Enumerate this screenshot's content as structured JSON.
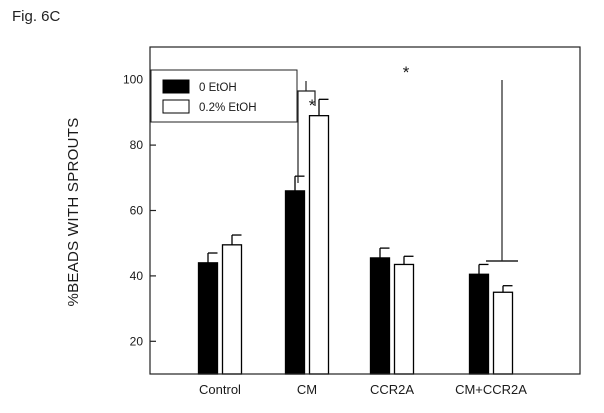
{
  "figure_label": "Fig. 6C",
  "chart_data": {
    "type": "bar",
    "title": "",
    "xlabel": "",
    "ylabel": "%BEADS WITH SPROUTS",
    "ylim": [
      10,
      110
    ],
    "yticks": [
      20,
      40,
      60,
      80,
      100
    ],
    "categories": [
      "Control",
      "CM",
      "CCR2A",
      "CM+CCR2A"
    ],
    "series": [
      {
        "name": "0 EtOH",
        "color": "#000000",
        "values": [
          44,
          66,
          45.5,
          40.5
        ],
        "errors": [
          3,
          4.5,
          3,
          3
        ]
      },
      {
        "name": "0.2% EtOH",
        "color": "#ffffff",
        "values": [
          49.5,
          89,
          43.5,
          35
        ],
        "errors": [
          3,
          5,
          2.5,
          2
        ]
      }
    ],
    "legend_position": "top-left",
    "annotations": [
      "*",
      "*"
    ],
    "grid": false
  }
}
